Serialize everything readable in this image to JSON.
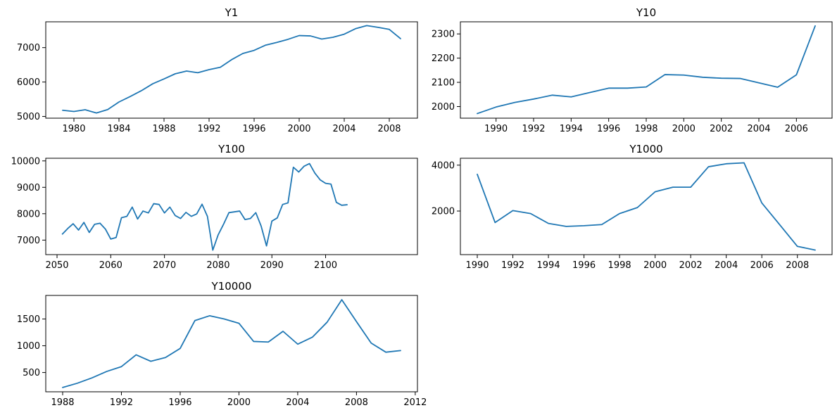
{
  "chart_data": [
    {
      "type": "line",
      "title": "Y1",
      "xlabel": "",
      "ylabel": "",
      "xlim": [
        1977.5,
        2010.5
      ],
      "ylim": [
        4950,
        7750
      ],
      "xticks": [
        1980,
        1984,
        1988,
        1992,
        1996,
        2000,
        2004,
        2008
      ],
      "yticks": [
        5000,
        6000,
        7000
      ],
      "x": [
        1979,
        1980,
        1981,
        1982,
        1983,
        1984,
        1985,
        1986,
        1987,
        1988,
        1989,
        1990,
        1991,
        1992,
        1993,
        1994,
        1995,
        1996,
        1997,
        1998,
        1999,
        2000,
        2001,
        2002,
        2003,
        2004,
        2005,
        2006,
        2007,
        2008,
        2009
      ],
      "values": [
        5180,
        5145,
        5195,
        5100,
        5200,
        5420,
        5580,
        5750,
        5950,
        6090,
        6240,
        6320,
        6270,
        6360,
        6430,
        6650,
        6830,
        6920,
        7070,
        7150,
        7240,
        7350,
        7340,
        7250,
        7300,
        7390,
        7550,
        7640,
        7590,
        7530,
        7260
      ],
      "grid": false
    },
    {
      "type": "line",
      "title": "Y10",
      "xlabel": "",
      "ylabel": "",
      "xlim": [
        1988.1,
        2007.9
      ],
      "ylim": [
        1952,
        2350
      ],
      "xticks": [
        1990,
        1992,
        1994,
        1996,
        1998,
        2000,
        2002,
        2004,
        2006
      ],
      "yticks": [
        2000,
        2100,
        2200,
        2300
      ],
      "x": [
        1989,
        1990,
        1991,
        1992,
        1993,
        1994,
        1995,
        1996,
        1997,
        1998,
        1999,
        2000,
        2001,
        2002,
        2003,
        2004,
        2005,
        2006,
        2007
      ],
      "values": [
        1971,
        1998,
        2017,
        2031,
        2047,
        2040,
        2058,
        2076,
        2076,
        2081,
        2132,
        2130,
        2121,
        2117,
        2116,
        2098,
        2080,
        2131,
        2333
      ],
      "grid": false
    },
    {
      "type": "line",
      "title": "Y100",
      "xlabel": "",
      "ylabel": "",
      "xlim": [
        2047.9,
        2117.1
      ],
      "ylim": [
        6450,
        10100
      ],
      "xticks": [
        2050,
        2060,
        2070,
        2080,
        2090,
        2100
      ],
      "yticks": [
        7000,
        8000,
        9000,
        10000
      ],
      "x": [
        2051,
        2052,
        2053,
        2054,
        2055,
        2056,
        2057,
        2058,
        2059,
        2060,
        2061,
        2062,
        2063,
        2064,
        2065,
        2066,
        2067,
        2068,
        2069,
        2070,
        2071,
        2072,
        2073,
        2074,
        2075,
        2076,
        2077,
        2078,
        2079,
        2080,
        2081,
        2082,
        2083,
        2084,
        2085,
        2086,
        2087,
        2088,
        2089,
        2090,
        2091,
        2092,
        2093,
        2094,
        2095,
        2096,
        2097,
        2098,
        2099,
        2100,
        2101,
        2102,
        2103,
        2104
      ],
      "values": [
        7230,
        7440,
        7620,
        7380,
        7670,
        7290,
        7600,
        7640,
        7420,
        7040,
        7100,
        7850,
        7900,
        8250,
        7800,
        8100,
        8030,
        8380,
        8350,
        8030,
        8250,
        7930,
        7820,
        8050,
        7900,
        7990,
        8360,
        7900,
        6620,
        7200,
        7600,
        8040,
        8070,
        8100,
        7780,
        7820,
        8040,
        7530,
        6780,
        7720,
        7840,
        8350,
        8410,
        9760,
        9580,
        9800,
        9900,
        9540,
        9280,
        9150,
        9120,
        8430,
        8320,
        8340
      ],
      "grid": false
    },
    {
      "type": "line",
      "title": "Y1000",
      "xlabel": "",
      "ylabel": "",
      "xlim": [
        1989.05,
        2009.95
      ],
      "ylim": [
        100,
        4300
      ],
      "xticks": [
        1990,
        1992,
        1994,
        1996,
        1998,
        2000,
        2002,
        2004,
        2006,
        2008
      ],
      "yticks": [
        2000,
        4000
      ],
      "x": [
        1990,
        1991,
        1992,
        1993,
        1994,
        1995,
        1996,
        1997,
        1998,
        1999,
        2000,
        2001,
        2002,
        2003,
        2004,
        2005,
        2006,
        2007,
        2008,
        2009
      ],
      "values": [
        3600,
        1500,
        2020,
        1890,
        1460,
        1330,
        1360,
        1410,
        1890,
        2150,
        2840,
        3040,
        3040,
        3930,
        4060,
        4100,
        2350,
        1410,
        460,
        300
      ],
      "grid": false
    },
    {
      "type": "line",
      "title": "Y10000",
      "xlabel": "",
      "ylabel": "",
      "xlim": [
        1986.85,
        2012.15
      ],
      "ylim": [
        140,
        1940
      ],
      "xticks": [
        1988,
        1992,
        1996,
        2000,
        2004,
        2008,
        2012
      ],
      "yticks": [
        500,
        1000,
        1500
      ],
      "x": [
        1988,
        1989,
        1990,
        1991,
        1992,
        1993,
        1994,
        1995,
        1996,
        1997,
        1998,
        1999,
        2000,
        2001,
        2002,
        2003,
        2004,
        2005,
        2006,
        2007,
        2008,
        2009,
        2010,
        2011
      ],
      "values": [
        220,
        300,
        400,
        520,
        610,
        830,
        710,
        780,
        950,
        1470,
        1560,
        1500,
        1420,
        1080,
        1070,
        1270,
        1030,
        1160,
        1440,
        1860,
        1450,
        1050,
        880,
        910
      ],
      "grid": false
    }
  ],
  "colors": {
    "series": "#1f77b4"
  }
}
